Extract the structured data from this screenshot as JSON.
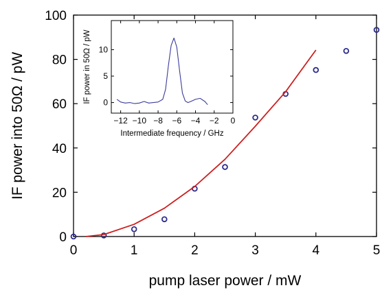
{
  "chart_data": [
    {
      "type": "scatter",
      "xlabel": "pump laser power / mW",
      "ylabel": "IF power into 50Ω / pW",
      "xlim": [
        0,
        5
      ],
      "ylim": [
        0,
        100
      ],
      "xticks": [
        0,
        1,
        2,
        3,
        4,
        5
      ],
      "yticks": [
        0,
        20,
        40,
        60,
        80,
        100
      ],
      "grid": false,
      "series": [
        {
          "kind": "scatter",
          "marker": "open-circle",
          "color": "#2a2a8c",
          "x": [
            0,
            0.5,
            1.0,
            1.5,
            2.0,
            2.5,
            3.0,
            3.5,
            4.0,
            4.5,
            5.0
          ],
          "y": [
            0,
            0.5,
            3.3,
            7.8,
            21.6,
            31.4,
            53.7,
            64.4,
            75.2,
            83.8,
            93.3
          ]
        },
        {
          "kind": "line",
          "color": "#cc1f1f",
          "x": [
            0.2,
            0.5,
            1.0,
            1.5,
            2.0,
            2.5,
            3.0,
            3.5,
            4.0
          ],
          "y": [
            0,
            0.9,
            5.5,
            12.8,
            22.6,
            34.9,
            49.8,
            65.4,
            84.2
          ]
        }
      ]
    },
    {
      "type": "line",
      "xlabel": "Intermediate frequency / GHz",
      "ylabel": "IF power in 50Ω / pW",
      "xlim": [
        -13,
        0
      ],
      "ylim": [
        -2,
        15.5
      ],
      "xticks": [
        -12,
        -10,
        -8,
        -6,
        -4,
        -2,
        0
      ],
      "yticks": [
        0,
        5,
        10
      ],
      "grid": false,
      "series": [
        {
          "kind": "line",
          "color": "#3a3a9a",
          "x": [
            -12.4,
            -12.0,
            -11.5,
            -11.0,
            -10.5,
            -10.0,
            -9.5,
            -9.0,
            -8.5,
            -8.0,
            -7.5,
            -7.2,
            -6.9,
            -6.6,
            -6.3,
            -6.0,
            -5.7,
            -5.4,
            -5.1,
            -4.8,
            -4.5,
            -4.0,
            -3.5,
            -3.0,
            -2.7
          ],
          "y": [
            0.6,
            0.1,
            -0.1,
            0.0,
            -0.2,
            -0.1,
            0.2,
            -0.1,
            0.0,
            0.1,
            0.6,
            2.5,
            7.0,
            10.8,
            12.2,
            10.5,
            6.0,
            1.8,
            0.3,
            0.0,
            0.2,
            0.6,
            0.8,
            0.2,
            -0.4
          ]
        }
      ]
    }
  ]
}
